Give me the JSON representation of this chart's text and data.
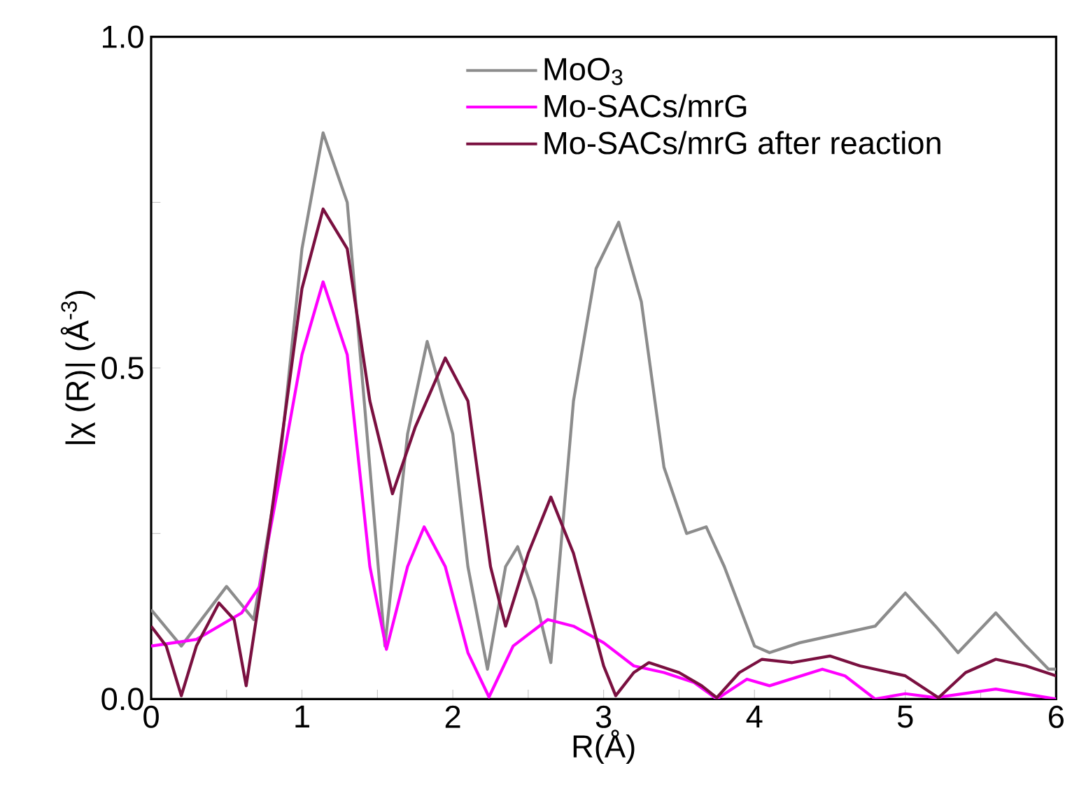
{
  "chart_data": {
    "type": "line",
    "xlabel": "R(Å)",
    "ylabel": "|χ (R)| (Å$^{-3}$)",
    "xlim": [
      0,
      6
    ],
    "xticks": [
      0,
      {
        "value": 0.5,
        "label": null
      },
      1,
      {
        "value": 1.5,
        "label": null
      },
      2,
      {
        "value": 2.5,
        "label": null
      },
      3,
      {
        "value": 3.5,
        "label": null
      },
      4,
      {
        "value": 4.5,
        "label": null
      },
      5,
      {
        "value": 5.5,
        "label": null
      },
      6
    ],
    "ylim": [
      0,
      1.0
    ],
    "yticks": [
      {
        "value": 0,
        "label": "0.0"
      },
      {
        "value": 0.25,
        "label": null
      },
      0.5,
      {
        "value": 0.75,
        "label": null
      },
      {
        "value": 1,
        "label": "1.0"
      }
    ],
    "grid": false,
    "legend": "top",
    "marker": "none",
    "line_style": "solid",
    "series": [
      {
        "name": "MoO$_{3}$",
        "color": "#8c8c8c",
        "x": [
          0,
          0.2,
          0.5,
          0.68,
          0.85,
          1.0,
          1.14,
          1.3,
          1.45,
          1.55,
          1.7,
          1.83,
          2.0,
          2.1,
          2.23,
          2.35,
          2.43,
          2.55,
          2.65,
          2.8,
          2.95,
          3.1,
          3.25,
          3.4,
          3.55,
          3.68,
          3.8,
          4.0,
          4.1,
          4.3,
          4.6,
          4.8,
          5.0,
          5.2,
          5.35,
          5.6,
          5.8,
          5.95,
          6.0
        ],
        "values": [
          0.135,
          0.08,
          0.17,
          0.12,
          0.35,
          0.68,
          0.855,
          0.75,
          0.35,
          0.08,
          0.4,
          0.54,
          0.4,
          0.2,
          0.045,
          0.2,
          0.23,
          0.15,
          0.055,
          0.45,
          0.65,
          0.72,
          0.6,
          0.35,
          0.25,
          0.26,
          0.2,
          0.08,
          0.07,
          0.085,
          0.1,
          0.11,
          0.16,
          0.11,
          0.07,
          0.13,
          0.08,
          0.045,
          0.045
        ]
      },
      {
        "name": "Mo-SACs/mrG",
        "color": "#ff00ff",
        "x": [
          0,
          0.3,
          0.6,
          0.72,
          0.85,
          1.0,
          1.14,
          1.3,
          1.45,
          1.56,
          1.7,
          1.81,
          1.95,
          2.1,
          2.24,
          2.4,
          2.63,
          2.8,
          3.0,
          3.2,
          3.4,
          3.6,
          3.75,
          3.95,
          4.1,
          4.45,
          4.6,
          4.8,
          5.0,
          5.2,
          5.6,
          6.0
        ],
        "values": [
          0.08,
          0.09,
          0.13,
          0.17,
          0.33,
          0.52,
          0.63,
          0.52,
          0.2,
          0.075,
          0.2,
          0.26,
          0.2,
          0.07,
          0.003,
          0.08,
          0.12,
          0.11,
          0.085,
          0.05,
          0.04,
          0.025,
          0.0,
          0.03,
          0.02,
          0.045,
          0.035,
          0.0,
          0.008,
          0.002,
          0.015,
          0.0
        ]
      },
      {
        "name": "Mo-SACs/mrG after reaction",
        "color": "#7a1040",
        "x": [
          0,
          0.1,
          0.2,
          0.3,
          0.45,
          0.55,
          0.63,
          0.75,
          0.9,
          1.0,
          1.14,
          1.3,
          1.45,
          1.6,
          1.75,
          1.95,
          2.1,
          2.25,
          2.35,
          2.5,
          2.65,
          2.8,
          3.0,
          3.08,
          3.2,
          3.3,
          3.5,
          3.65,
          3.75,
          3.9,
          4.05,
          4.25,
          4.5,
          4.7,
          5.0,
          5.22,
          5.4,
          5.6,
          5.8,
          6.0
        ],
        "values": [
          0.11,
          0.08,
          0.005,
          0.08,
          0.145,
          0.12,
          0.02,
          0.2,
          0.45,
          0.62,
          0.74,
          0.68,
          0.45,
          0.31,
          0.41,
          0.515,
          0.45,
          0.2,
          0.11,
          0.22,
          0.305,
          0.22,
          0.05,
          0.005,
          0.04,
          0.055,
          0.04,
          0.02,
          0.002,
          0.04,
          0.06,
          0.055,
          0.065,
          0.05,
          0.035,
          0.002,
          0.04,
          0.06,
          0.05,
          0.035
        ]
      }
    ]
  }
}
